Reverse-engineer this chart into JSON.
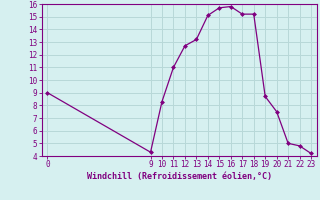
{
  "x": [
    0,
    9,
    10,
    11,
    12,
    13,
    14,
    15,
    16,
    17,
    18,
    19,
    20,
    21,
    22,
    23
  ],
  "y": [
    9,
    4.3,
    8.3,
    11.0,
    12.7,
    13.2,
    15.1,
    15.7,
    15.8,
    15.2,
    15.2,
    8.7,
    7.5,
    5.0,
    4.8,
    4.2
  ],
  "line_color": "#800080",
  "marker": "D",
  "marker_size": 2.5,
  "bg_color": "#d6f0f0",
  "grid_color": "#b8d8d8",
  "axis_color": "#800080",
  "tick_color": "#800080",
  "xlabel": "Windchill (Refroidissement éolien,°C)",
  "xlabel_color": "#800080",
  "xlim": [
    -0.5,
    23.5
  ],
  "ylim": [
    4,
    16
  ],
  "xticks": [
    0,
    9,
    10,
    11,
    12,
    13,
    14,
    15,
    16,
    17,
    18,
    19,
    20,
    21,
    22,
    23
  ],
  "yticks": [
    4,
    5,
    6,
    7,
    8,
    9,
    10,
    11,
    12,
    13,
    14,
    15,
    16
  ],
  "label_fontsize": 5.5,
  "xlabel_fontsize": 6.0
}
